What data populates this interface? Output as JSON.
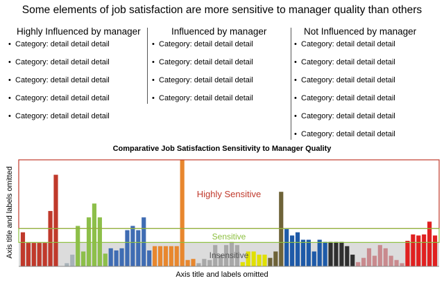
{
  "header": {
    "title": "Some elements of job satisfaction are more sensitive to manager quality than others"
  },
  "columns": [
    {
      "heading": "Highly Influenced by manager",
      "items": [
        "Category: detail detail detail",
        "Category: detail detail detail",
        "Category: detail detail detail",
        "Category: detail detail detail",
        "Category: detail detail detail"
      ]
    },
    {
      "heading": "Influenced by manager",
      "items": [
        "Category: detail detail detail",
        "Category: detail detail detail",
        "Category: detail detail detail",
        "Category: detail detail detail"
      ]
    },
    {
      "heading": "Not Influenced by manager",
      "items": [
        "Category: detail detail detail",
        "Category: detail detail detail",
        "Category: detail detail detail",
        "Category: detail detail detail",
        "Category: detail detail detail",
        "Category: detail detail detail"
      ]
    }
  ],
  "bullet_char": "•",
  "chart_data": {
    "type": "bar",
    "title": "Comparative Job Satisfaction Sensitivity to Manager Quality",
    "xlabel": "Axis title and labels omitted",
    "ylabel": "Axis title and labels omitted",
    "ylim": [
      0,
      100
    ],
    "grid": false,
    "bands": [
      {
        "label": "Highly Sensitive",
        "from": 35.5,
        "to": 100,
        "color": "#c0392b",
        "fill": "none"
      },
      {
        "label": "Sensitive",
        "from": 22.5,
        "to": 35.5,
        "color": "#8cbf3f",
        "fill": "none"
      },
      {
        "label": "Insensitive",
        "from": 0,
        "to": 22.5,
        "color": "#555555",
        "fill": "#dcdcdc"
      }
    ],
    "groups": [
      {
        "color": "#c0392b",
        "values": [
          32,
          22,
          22,
          22,
          22,
          52,
          86
        ]
      },
      {
        "color": "#8e0e1a",
        "values": [
          0
        ]
      },
      {
        "color": "#a7b2b8",
        "values": [
          3,
          11
        ]
      },
      {
        "color": "#8dbf4a",
        "values": [
          38,
          14,
          46,
          59,
          46,
          12
        ]
      },
      {
        "color": "#3f6cb3",
        "values": [
          17,
          15,
          17,
          34,
          38,
          34,
          46,
          15
        ]
      },
      {
        "color": "#e8872e",
        "values": [
          19,
          19,
          19,
          19,
          19,
          100,
          6,
          7
        ]
      },
      {
        "color": "#a8a8a8",
        "values": [
          3,
          7,
          6,
          20,
          11,
          20,
          23,
          20
        ]
      },
      {
        "color": "#e1e000",
        "values": [
          4,
          14,
          14,
          11,
          11
        ]
      },
      {
        "color": "#6e6338",
        "values": [
          8,
          14,
          70
        ]
      },
      {
        "color": "#1e5aa8",
        "values": [
          35,
          29,
          32,
          25,
          25,
          14,
          25,
          23
        ]
      },
      {
        "color": "#2f2f2f",
        "values": [
          23,
          23,
          23,
          19,
          11
        ]
      },
      {
        "color": "#c98a8e",
        "values": [
          4,
          8,
          17,
          10,
          20,
          17,
          10,
          6,
          3
        ]
      },
      {
        "color": "#e02020",
        "values": [
          24,
          30,
          29,
          30,
          42,
          29
        ]
      }
    ]
  }
}
